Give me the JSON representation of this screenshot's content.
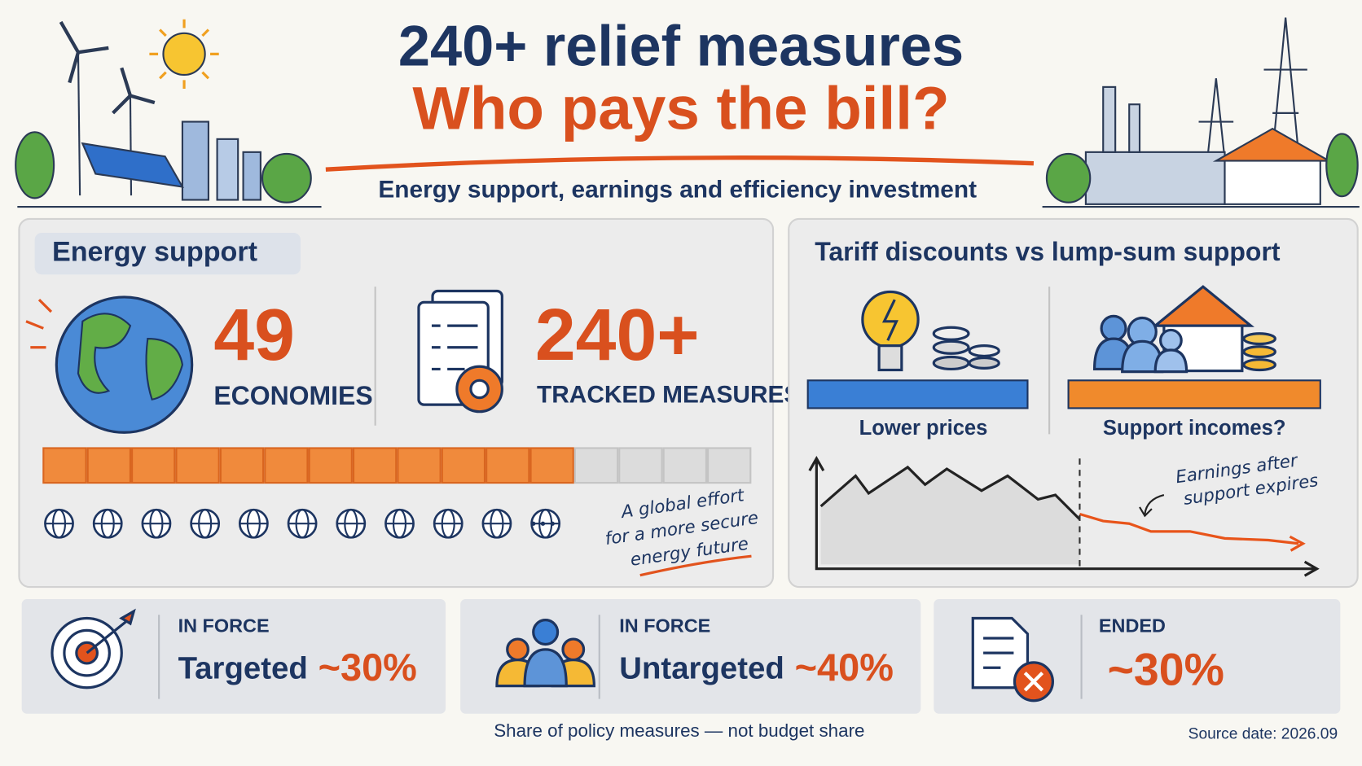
{
  "header": {
    "title_line1": "240+ relief measures",
    "title_line2": "Who pays the bill?",
    "subtitle": "Energy support, earnings and efficiency investment"
  },
  "energy_support": {
    "heading": "Energy support",
    "stats": [
      {
        "value": "49",
        "label": "ECONOMIES"
      },
      {
        "value": "240+",
        "label": "TRACKED MEASURES"
      }
    ],
    "note_lines": [
      "A global effort",
      "for a more secure",
      "energy future"
    ]
  },
  "tariff": {
    "heading": "Tariff discounts vs lump-sum support",
    "options": [
      {
        "label": "Lower prices"
      },
      {
        "label": "Support incomes?"
      }
    ],
    "annotation_lines": [
      "Earnings after",
      "support expires"
    ]
  },
  "shares": [
    {
      "status": "IN FORCE",
      "name": "Targeted",
      "share": "~30%"
    },
    {
      "status": "IN FORCE",
      "name": "Untargeted",
      "share": "~40%"
    },
    {
      "status": "ENDED",
      "share": "~30%"
    }
  ],
  "footnote": "Share of policy measures — not budget share",
  "source": "Source date: 2026.09"
}
